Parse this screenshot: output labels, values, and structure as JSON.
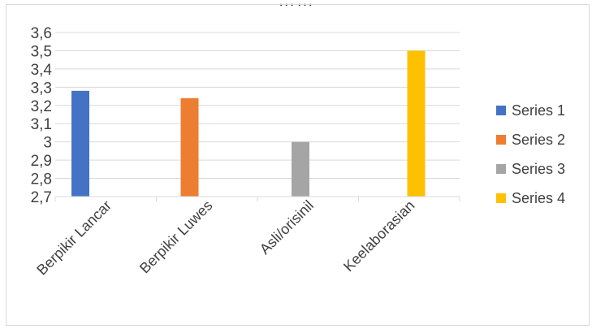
{
  "caption": "… …",
  "chart_data": {
    "type": "bar",
    "categories": [
      "Berpikir Lancar",
      "Berpikir Luwes",
      "Asli/orisinil",
      "Keelaborasian"
    ],
    "series": [
      {
        "name": "Series 1",
        "color": "#4472c4",
        "values": [
          3.28,
          null,
          null,
          null
        ]
      },
      {
        "name": "Series 2",
        "color": "#ed7d31",
        "values": [
          null,
          3.24,
          null,
          null
        ]
      },
      {
        "name": "Series 3",
        "color": "#a5a5a5",
        "values": [
          null,
          null,
          3.0,
          null
        ]
      },
      {
        "name": "Series 4",
        "color": "#ffc000",
        "values": [
          null,
          null,
          null,
          3.5
        ]
      }
    ],
    "ylim": [
      2.7,
      3.6
    ],
    "yticks": [
      "2,7",
      "2,8",
      "2,9",
      "3",
      "3,1",
      "3,2",
      "3,3",
      "3,4",
      "3,5",
      "3,6"
    ],
    "grid": true,
    "legend": "right"
  }
}
